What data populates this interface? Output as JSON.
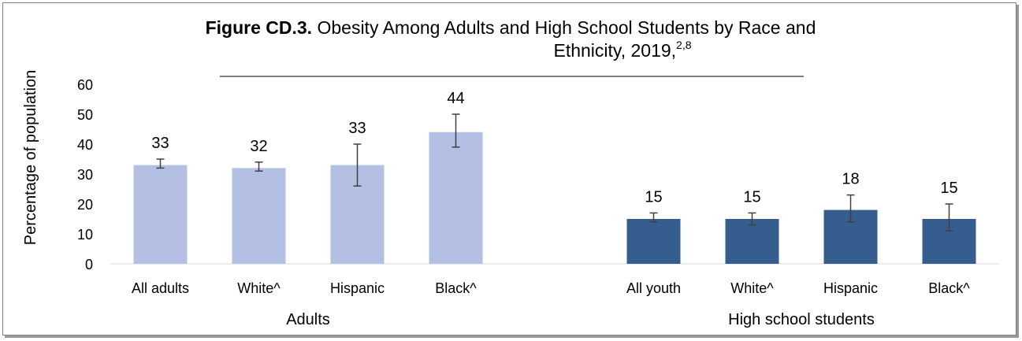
{
  "title": {
    "bold": "Figure CD.3.",
    "line1": " Obesity Among Adults and High School Students by Race and",
    "line2": "Ethnicity, 2019,",
    "refs": "2,8"
  },
  "chart_data": {
    "type": "bar",
    "ylabel": "Percentage of population",
    "ylim": [
      0,
      60
    ],
    "yticks": [
      0,
      10,
      20,
      30,
      40,
      50,
      60
    ],
    "grid": false,
    "groups": [
      {
        "label": "Adults",
        "color": "#b4c0e3",
        "bars": [
          {
            "category": "All adults",
            "value": 33,
            "ci": [
              32,
              35
            ]
          },
          {
            "category": "White^",
            "value": 32,
            "ci": [
              31,
              34
            ]
          },
          {
            "category": "Hispanic",
            "value": 33,
            "ci": [
              26,
              40
            ]
          },
          {
            "category": "Black^",
            "value": 44,
            "ci": [
              39,
              50
            ]
          }
        ]
      },
      {
        "label": "High school students",
        "color": "#355e8e",
        "bars": [
          {
            "category": "All youth",
            "value": 15,
            "ci": [
              14,
              17
            ]
          },
          {
            "category": "White^",
            "value": 15,
            "ci": [
              13,
              17
            ]
          },
          {
            "category": "Hispanic",
            "value": 18,
            "ci": [
              14,
              23
            ]
          },
          {
            "category": "Black^",
            "value": 15,
            "ci": [
              11,
              20
            ]
          }
        ]
      }
    ]
  }
}
